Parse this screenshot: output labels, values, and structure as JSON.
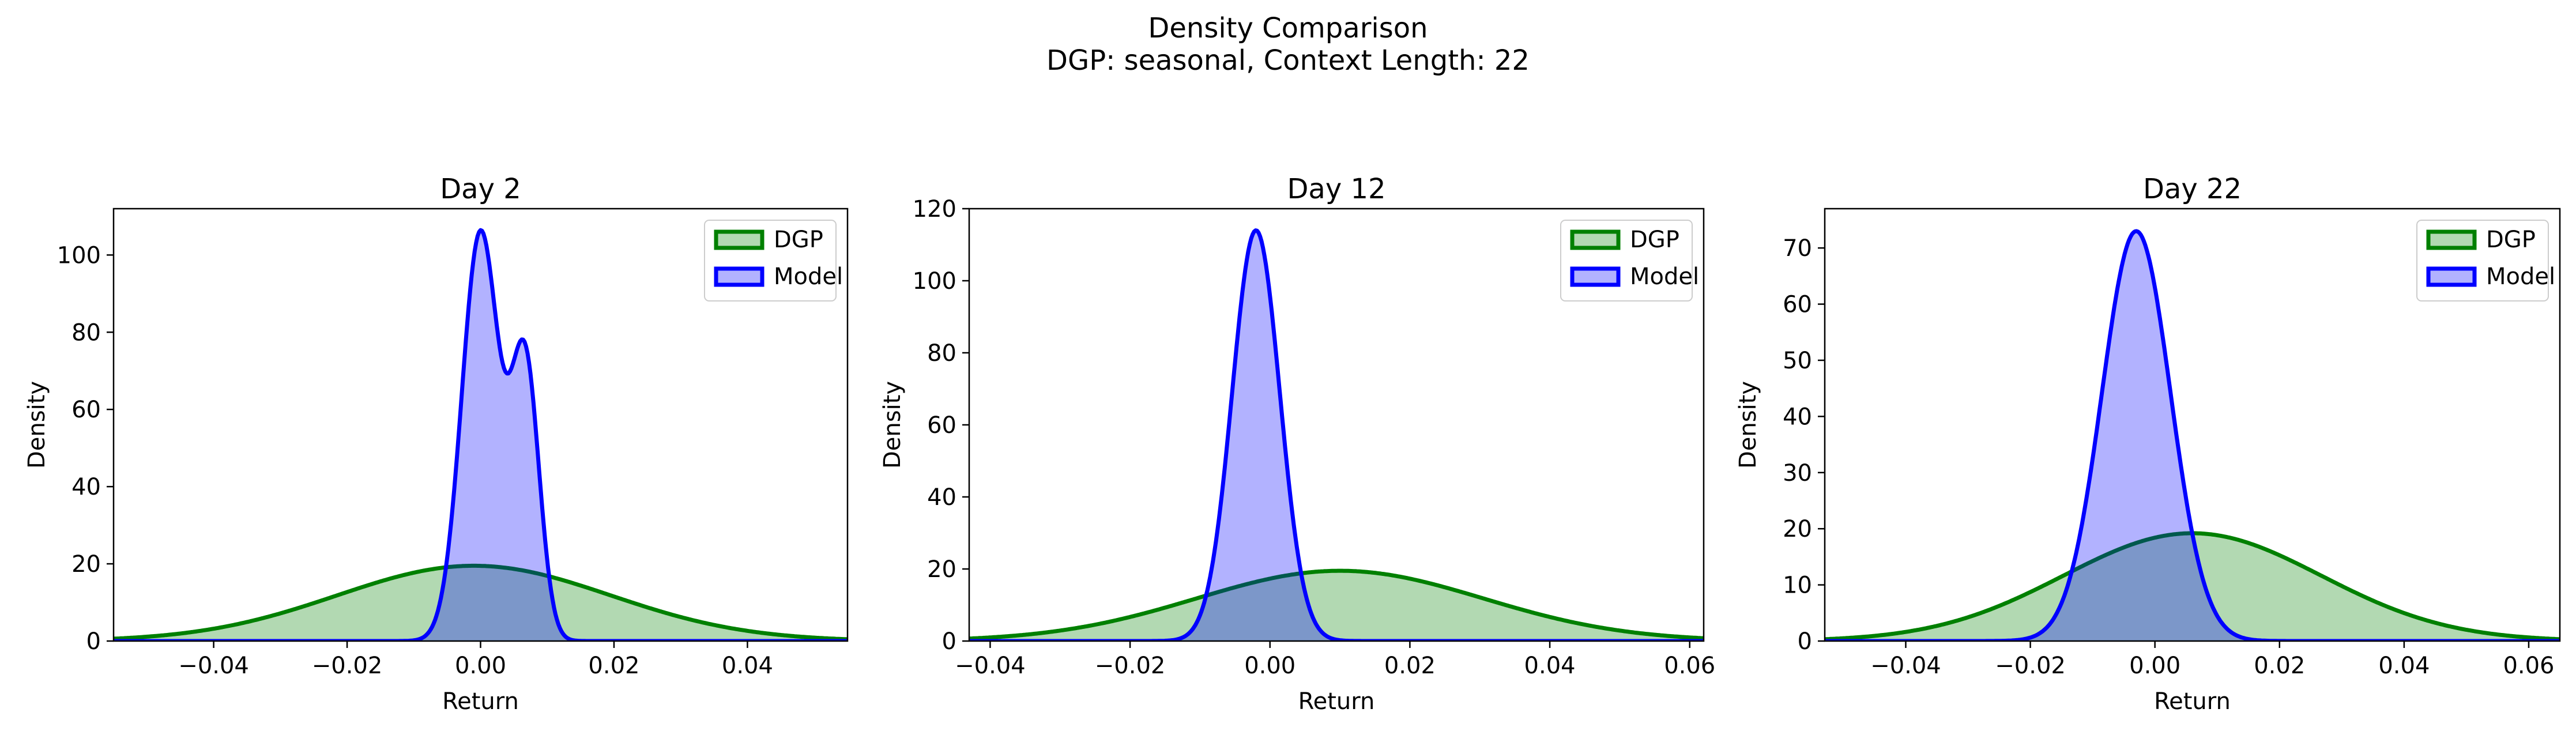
{
  "figure": {
    "title": "Density Comparison",
    "subtitle": "DGP: seasonal, Context Length: 22"
  },
  "colors": {
    "dgp_line": "#008000",
    "dgp_fill": "#008000",
    "model_line": "#0000ff",
    "model_fill": "#0000ff"
  },
  "chart_data": [
    {
      "type": "area",
      "title": "Day 2",
      "xlabel": "Return",
      "ylabel": "Density",
      "xlim": [
        -0.055,
        0.055
      ],
      "ylim": [
        0,
        112
      ],
      "xticks": [
        -0.04,
        -0.02,
        0.0,
        0.02,
        0.04
      ],
      "xtick_labels": [
        "−0.04",
        "−0.02",
        "0.00",
        "0.02",
        "0.04"
      ],
      "yticks": [
        0,
        20,
        40,
        60,
        80,
        100
      ],
      "legend": "top-right",
      "grid": false,
      "series": [
        {
          "name": "DGP",
          "kind": "gaussian",
          "mean": -0.001,
          "sd": 0.0205,
          "peak": 19.5
        },
        {
          "name": "Model",
          "kind": "mixture",
          "components": [
            {
              "mean": 0.0,
              "sd": 0.0028,
              "peak": 106
            },
            {
              "mean": 0.0067,
              "sd": 0.0021,
              "peak": 71
            }
          ]
        }
      ]
    },
    {
      "type": "area",
      "title": "Day 12",
      "xlabel": "Return",
      "ylabel": "Density",
      "xlim": [
        -0.043,
        0.062
      ],
      "ylim": [
        0,
        120
      ],
      "xticks": [
        -0.04,
        -0.02,
        0.0,
        0.02,
        0.04,
        0.06
      ],
      "xtick_labels": [
        "−0.04",
        "−0.02",
        "0.00",
        "0.02",
        "0.04",
        "0.06"
      ],
      "yticks": [
        0,
        20,
        40,
        60,
        80,
        100,
        120
      ],
      "legend": "top-right",
      "grid": false,
      "series": [
        {
          "name": "DGP",
          "kind": "gaussian",
          "mean": 0.01,
          "sd": 0.0205,
          "peak": 19.5
        },
        {
          "name": "Model",
          "kind": "gaussian",
          "mean": -0.002,
          "sd": 0.0034,
          "peak": 114
        }
      ]
    },
    {
      "type": "area",
      "title": "Day 22",
      "xlabel": "Return",
      "ylabel": "Density",
      "xlim": [
        -0.053,
        0.065
      ],
      "ylim": [
        0,
        77
      ],
      "xticks": [
        -0.04,
        -0.02,
        0.0,
        0.02,
        0.04,
        0.06
      ],
      "xtick_labels": [
        "−0.04",
        "−0.02",
        "0.00",
        "0.02",
        "0.04",
        "0.06"
      ],
      "yticks": [
        0,
        10,
        20,
        30,
        40,
        50,
        60,
        70
      ],
      "legend": "top-right",
      "grid": false,
      "series": [
        {
          "name": "DGP",
          "kind": "gaussian",
          "mean": 0.006,
          "sd": 0.0207,
          "peak": 19.2
        },
        {
          "name": "Model",
          "kind": "gaussian",
          "mean": -0.003,
          "sd": 0.0055,
          "peak": 73
        }
      ]
    }
  ]
}
